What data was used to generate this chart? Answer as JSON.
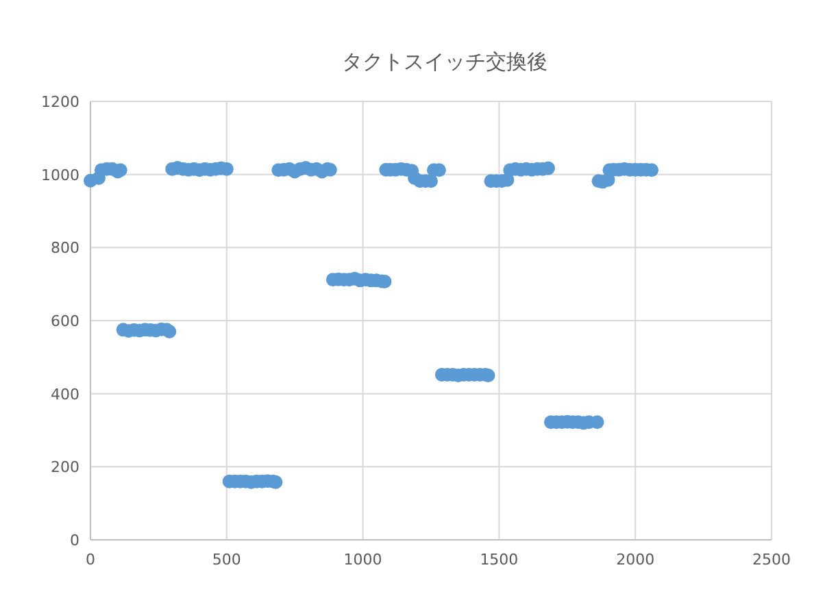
{
  "chart_data": {
    "type": "scatter",
    "title": "タクトスイッチ交換後",
    "x": [
      0,
      30,
      40,
      60,
      80,
      100,
      110,
      120,
      140,
      160,
      180,
      200,
      220,
      240,
      260,
      280,
      290,
      300,
      320,
      340,
      360,
      380,
      400,
      420,
      440,
      460,
      480,
      500,
      510,
      530,
      550,
      570,
      590,
      610,
      630,
      650,
      670,
      680,
      690,
      710,
      730,
      750,
      770,
      790,
      810,
      830,
      850,
      870,
      880,
      890,
      910,
      930,
      950,
      970,
      990,
      1010,
      1030,
      1050,
      1070,
      1080,
      1085,
      1100,
      1120,
      1140,
      1160,
      1180,
      1190,
      1210,
      1230,
      1250,
      1260,
      1280,
      1290,
      1310,
      1330,
      1350,
      1370,
      1390,
      1410,
      1430,
      1450,
      1460,
      1470,
      1490,
      1510,
      1530,
      1540,
      1560,
      1580,
      1600,
      1620,
      1640,
      1660,
      1680,
      1690,
      1710,
      1730,
      1750,
      1770,
      1790,
      1810,
      1830,
      1860,
      1865,
      1880,
      1900,
      1905,
      1920,
      1940,
      1960,
      1980,
      2000,
      2020,
      2040,
      2060
    ],
    "series": [
      {
        "color": "#5b9bd5",
        "values": [
          983,
          990,
          1012,
          1015,
          1015,
          1008,
          1012,
          575,
          572,
          574,
          573,
          575,
          574,
          573,
          576,
          575,
          570,
          1015,
          1018,
          1015,
          1013,
          1015,
          1012,
          1015,
          1013,
          1015,
          1017,
          1015,
          160,
          160,
          160,
          160,
          158,
          160,
          160,
          161,
          160,
          158,
          1012,
          1013,
          1015,
          1008,
          1015,
          1018,
          1013,
          1015,
          1008,
          1015,
          1013,
          712,
          713,
          712,
          712,
          715,
          710,
          712,
          710,
          710,
          708,
          707,
          1013,
          1013,
          1013,
          1015,
          1013,
          1010,
          990,
          982,
          982,
          982,
          1012,
          1012,
          452,
          452,
          452,
          450,
          452,
          452,
          452,
          452,
          452,
          450,
          982,
          982,
          982,
          985,
          1012,
          1015,
          1013,
          1015,
          1013,
          1015,
          1015,
          1017,
          322,
          322,
          322,
          323,
          322,
          322,
          320,
          322,
          322,
          982,
          980,
          985,
          1012,
          1013,
          1013,
          1015,
          1013,
          1013,
          1013,
          1013,
          1012
        ]
      }
    ],
    "xlim": [
      0,
      2500
    ],
    "xticks": [
      0,
      500,
      1000,
      1500,
      2000,
      2500
    ],
    "ylim": [
      0,
      1200
    ],
    "yticks": [
      0,
      200,
      400,
      600,
      800,
      1000,
      1200
    ],
    "grid": true,
    "marker": "circle"
  }
}
